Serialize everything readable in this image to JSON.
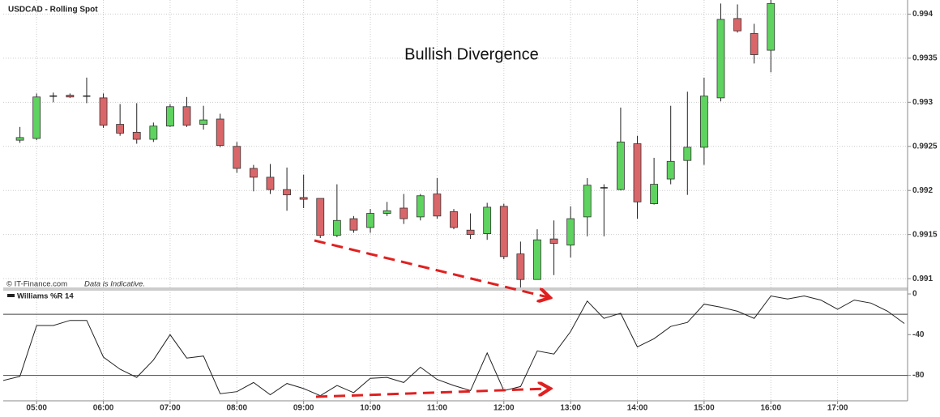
{
  "chart_data": [
    {
      "type": "candlestick",
      "title": "USDCAD - Rolling Spot",
      "annotation": "Bullish Divergence",
      "source": "© IT-Finance.com",
      "note": "Data is Indicative.",
      "categories": [
        null,
        null,
        "05:00",
        null,
        null,
        null,
        "06:00",
        null,
        null,
        null,
        "07:00",
        null,
        null,
        null,
        "08:00",
        null,
        null,
        null,
        "09:00",
        null,
        null,
        null,
        "10:00",
        null,
        null,
        null,
        "11:00",
        null,
        null,
        null,
        "12:00",
        null,
        null,
        null,
        "13:00",
        null,
        null,
        null,
        "14:00",
        null,
        null,
        null,
        "15:00",
        null,
        null,
        null,
        "16:00",
        null,
        null,
        null,
        "17:00",
        null,
        null,
        null,
        null
      ],
      "open": [
        null,
        0.99257,
        0.99259,
        0.99307,
        0.99308,
        0.99307,
        0.99305,
        0.99275,
        0.99266,
        0.99258,
        0.99273,
        0.99295,
        0.99275,
        0.99281,
        0.9925,
        0.99225,
        0.99215,
        0.99201,
        0.99192,
        0.99191,
        0.99149,
        0.99168,
        0.99158,
        0.99174,
        0.9918,
        0.9917,
        0.99196,
        0.99176,
        0.99155,
        0.99151,
        0.99182,
        0.99128,
        0.99099,
        0.99145,
        0.99138,
        0.9917,
        0.99203,
        0.99201,
        0.99253,
        0.99185,
        0.99213,
        0.99234,
        0.99249,
        0.99305,
        0.99395,
        0.99378,
        0.99359,
        null,
        null,
        null,
        null,
        null,
        null,
        null,
        null
      ],
      "high": [
        null,
        0.99272,
        0.9931,
        0.99311,
        0.9931,
        0.99328,
        0.9931,
        0.99298,
        0.99299,
        0.99277,
        0.99298,
        0.99306,
        0.99296,
        0.99287,
        0.99255,
        0.99229,
        0.9923,
        0.99226,
        0.99218,
        0.99191,
        0.99207,
        0.99171,
        0.99179,
        0.99187,
        0.99196,
        0.99196,
        0.99214,
        0.99179,
        0.99174,
        0.99186,
        0.99185,
        0.99142,
        0.99156,
        0.99166,
        0.99182,
        0.99214,
        0.99207,
        0.99294,
        0.99262,
        0.99237,
        0.99296,
        0.99312,
        0.99328,
        0.99412,
        0.99411,
        0.99389,
        0.99416,
        null,
        null,
        null,
        null,
        null,
        null,
        null,
        null
      ],
      "low": [
        null,
        0.99254,
        0.99257,
        0.993,
        0.99305,
        0.99299,
        0.99271,
        0.99262,
        0.99253,
        0.99255,
        0.99272,
        0.99272,
        0.99269,
        0.99249,
        0.9922,
        0.99199,
        0.99196,
        0.99177,
        0.9918,
        0.99146,
        0.99147,
        0.99152,
        0.99152,
        0.99171,
        0.99162,
        0.99166,
        0.99168,
        0.99156,
        0.99145,
        0.99144,
        0.99122,
        0.9909,
        0.99099,
        0.99104,
        0.99124,
        0.99148,
        0.99148,
        0.992,
        0.99168,
        0.99184,
        0.99207,
        0.99195,
        0.99229,
        0.99301,
        0.99379,
        0.99344,
        0.99334,
        null,
        null,
        null,
        null,
        null,
        null,
        null,
        null
      ],
      "close": [
        null,
        0.9926,
        0.99306,
        0.99307,
        0.99306,
        0.99307,
        0.99274,
        0.99265,
        0.99258,
        0.99273,
        0.99295,
        0.99274,
        0.9928,
        0.99251,
        0.99225,
        0.99215,
        0.99201,
        0.99195,
        0.9919,
        0.99149,
        0.99166,
        0.99155,
        0.99174,
        0.99177,
        0.99168,
        0.99194,
        0.99171,
        0.99158,
        0.9915,
        0.99181,
        0.99125,
        0.99099,
        0.99144,
        0.9914,
        0.99168,
        0.99206,
        0.99203,
        0.99255,
        0.99187,
        0.99207,
        0.99233,
        0.99249,
        0.99307,
        0.99394,
        0.99381,
        0.99354,
        0.99412,
        null,
        null,
        null,
        null,
        null,
        null,
        null,
        null
      ],
      "up_color": "#5fd35f",
      "down_color": "#d9676a",
      "ylim": [
        0.9909,
        0.99416
      ],
      "yticks": [
        0.994,
        0.9935,
        0.993,
        0.9925,
        0.992,
        0.9915,
        0.991
      ],
      "grid": true
    },
    {
      "type": "line",
      "series": [
        {
          "name": "Williams %R 14",
          "color": "#222222",
          "values": [
            -85,
            -81,
            -31,
            -31,
            -26,
            -26,
            -62,
            -74,
            -82,
            -65,
            -40,
            -63,
            -61,
            -98,
            -96,
            -87,
            -99,
            -88,
            -93,
            -100,
            -90,
            -97,
            -83,
            -82,
            -87,
            -72,
            -84,
            -90,
            -95,
            -58,
            -95,
            -91,
            -56,
            -59,
            -37,
            -7,
            -24,
            -19,
            -52,
            -44,
            -32,
            -28,
            -10,
            -13,
            -17,
            -24,
            -2,
            -5,
            -2,
            -6,
            -15,
            -6,
            -9,
            -17,
            -29
          ]
        }
      ],
      "levels": [
        -20,
        -80
      ],
      "ylim": [
        -105,
        4
      ],
      "yticks": [
        0,
        -40,
        -80
      ],
      "grid": true
    }
  ]
}
